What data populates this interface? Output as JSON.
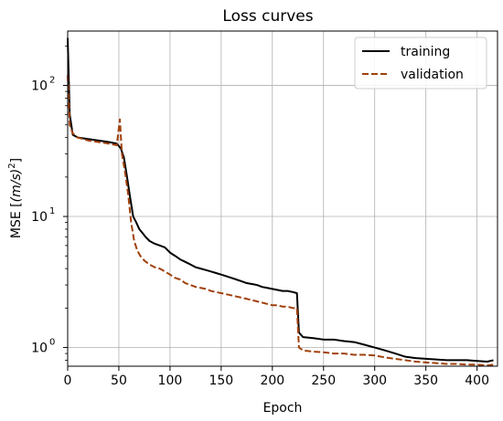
{
  "chart_data": {
    "type": "line",
    "title": "Loss curves",
    "xlabel": "Epoch",
    "ylabel_prefix": "MSE [",
    "ylabel_math": "(m/s)",
    "ylabel_exp": "2",
    "ylabel_suffix": "]",
    "xlim": [
      0,
      420
    ],
    "ylim": [
      0.72,
      260
    ],
    "yscale": "log",
    "grid": true,
    "legend_position": "top-right",
    "x_ticks": [
      0,
      50,
      100,
      150,
      200,
      250,
      300,
      350,
      400
    ],
    "x_tick_labels": [
      "0",
      "50",
      "100",
      "150",
      "200",
      "250",
      "300",
      "350",
      "400"
    ],
    "y_ticks": [
      1,
      10,
      100
    ],
    "y_tick_labels_base": [
      "10",
      "10",
      "10"
    ],
    "y_tick_labels_exp": [
      "0",
      "1",
      "2"
    ],
    "series": [
      {
        "name": "training",
        "color": "#000000",
        "style": "solid",
        "points": [
          [
            0,
            230
          ],
          [
            2,
            60
          ],
          [
            5,
            42
          ],
          [
            10,
            40
          ],
          [
            20,
            39
          ],
          [
            30,
            38
          ],
          [
            40,
            37
          ],
          [
            48,
            36
          ],
          [
            52,
            33
          ],
          [
            55,
            28
          ],
          [
            58,
            20
          ],
          [
            61,
            14
          ],
          [
            64,
            10
          ],
          [
            67,
            9
          ],
          [
            70,
            8
          ],
          [
            73,
            7.5
          ],
          [
            76,
            7
          ],
          [
            80,
            6.5
          ],
          [
            85,
            6.2
          ],
          [
            90,
            6
          ],
          [
            95,
            5.8
          ],
          [
            100,
            5.3
          ],
          [
            105,
            5
          ],
          [
            110,
            4.7
          ],
          [
            115,
            4.5
          ],
          [
            120,
            4.3
          ],
          [
            125,
            4.1
          ],
          [
            130,
            4
          ],
          [
            135,
            3.9
          ],
          [
            140,
            3.8
          ],
          [
            145,
            3.7
          ],
          [
            150,
            3.6
          ],
          [
            155,
            3.5
          ],
          [
            160,
            3.4
          ],
          [
            165,
            3.3
          ],
          [
            170,
            3.2
          ],
          [
            175,
            3.1
          ],
          [
            180,
            3.05
          ],
          [
            185,
            3
          ],
          [
            190,
            2.9
          ],
          [
            195,
            2.85
          ],
          [
            200,
            2.8
          ],
          [
            205,
            2.75
          ],
          [
            210,
            2.7
          ],
          [
            215,
            2.7
          ],
          [
            220,
            2.65
          ],
          [
            224,
            2.6
          ],
          [
            226,
            1.3
          ],
          [
            230,
            1.2
          ],
          [
            240,
            1.18
          ],
          [
            250,
            1.15
          ],
          [
            260,
            1.15
          ],
          [
            270,
            1.12
          ],
          [
            280,
            1.1
          ],
          [
            290,
            1.05
          ],
          [
            300,
            1.0
          ],
          [
            310,
            0.95
          ],
          [
            320,
            0.9
          ],
          [
            330,
            0.85
          ],
          [
            340,
            0.83
          ],
          [
            350,
            0.82
          ],
          [
            360,
            0.81
          ],
          [
            370,
            0.8
          ],
          [
            380,
            0.8
          ],
          [
            390,
            0.8
          ],
          [
            400,
            0.79
          ],
          [
            410,
            0.78
          ],
          [
            416,
            0.8
          ]
        ]
      },
      {
        "name": "validation",
        "color": "#a0400c",
        "style": "dashed",
        "points": [
          [
            0,
            120
          ],
          [
            2,
            50
          ],
          [
            5,
            43
          ],
          [
            10,
            40
          ],
          [
            20,
            38
          ],
          [
            30,
            37
          ],
          [
            40,
            36
          ],
          [
            48,
            35
          ],
          [
            51,
            55
          ],
          [
            53,
            30
          ],
          [
            56,
            22
          ],
          [
            59,
            15
          ],
          [
            62,
            9
          ],
          [
            65,
            6.5
          ],
          [
            68,
            5.5
          ],
          [
            71,
            5
          ],
          [
            75,
            4.6
          ],
          [
            80,
            4.3
          ],
          [
            85,
            4.1
          ],
          [
            90,
            4
          ],
          [
            95,
            3.8
          ],
          [
            100,
            3.6
          ],
          [
            105,
            3.4
          ],
          [
            110,
            3.3
          ],
          [
            115,
            3.1
          ],
          [
            120,
            3
          ],
          [
            125,
            2.9
          ],
          [
            130,
            2.85
          ],
          [
            135,
            2.8
          ],
          [
            140,
            2.7
          ],
          [
            145,
            2.65
          ],
          [
            150,
            2.6
          ],
          [
            155,
            2.55
          ],
          [
            160,
            2.5
          ],
          [
            165,
            2.45
          ],
          [
            170,
            2.4
          ],
          [
            175,
            2.35
          ],
          [
            180,
            2.3
          ],
          [
            185,
            2.25
          ],
          [
            190,
            2.2
          ],
          [
            195,
            2.15
          ],
          [
            200,
            2.1
          ],
          [
            205,
            2.1
          ],
          [
            210,
            2.05
          ],
          [
            215,
            2.05
          ],
          [
            220,
            2.0
          ],
          [
            224,
            2.0
          ],
          [
            226,
            1.0
          ],
          [
            230,
            0.95
          ],
          [
            240,
            0.93
          ],
          [
            250,
            0.92
          ],
          [
            260,
            0.9
          ],
          [
            270,
            0.9
          ],
          [
            280,
            0.88
          ],
          [
            290,
            0.88
          ],
          [
            300,
            0.87
          ],
          [
            310,
            0.84
          ],
          [
            320,
            0.82
          ],
          [
            330,
            0.8
          ],
          [
            340,
            0.78
          ],
          [
            350,
            0.77
          ],
          [
            360,
            0.76
          ],
          [
            370,
            0.75
          ],
          [
            380,
            0.75
          ],
          [
            390,
            0.74
          ],
          [
            400,
            0.74
          ],
          [
            410,
            0.73
          ],
          [
            416,
            0.74
          ]
        ]
      }
    ]
  }
}
